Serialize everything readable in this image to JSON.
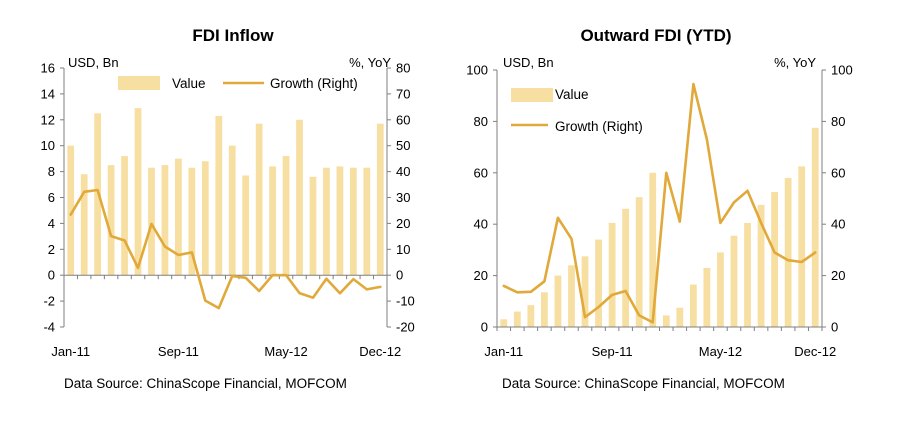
{
  "colors": {
    "bar": "#f7dea1",
    "line": "#e0a93a",
    "axis": "#7f7f7f"
  },
  "chart_data": [
    {
      "type": "bar",
      "title": "FDI Inflow",
      "left_unit": "USD, Bn",
      "right_unit": "%, YoY",
      "source": "Data Source: ChinaScope Financial, MOFCOM",
      "ylim": [
        -4,
        16
      ],
      "ylim_right": [
        -20,
        80
      ],
      "y_ticks": [
        -4,
        -2,
        0,
        2,
        4,
        6,
        8,
        10,
        12,
        14,
        16
      ],
      "y_ticks_right": [
        -20,
        -10,
        0,
        10,
        20,
        30,
        40,
        50,
        60,
        70,
        80
      ],
      "x_tick_labels": [
        {
          "index": 0,
          "label": "Jan-11"
        },
        {
          "index": 8,
          "label": "Sep-11"
        },
        {
          "index": 16,
          "label": "May-12"
        },
        {
          "index": 23,
          "label": "Dec-12"
        }
      ],
      "series": [
        {
          "name": "Value",
          "kind": "bar",
          "axis": "left",
          "values": [
            10.0,
            7.8,
            12.5,
            8.5,
            9.2,
            12.9,
            8.3,
            8.5,
            9.0,
            8.3,
            8.8,
            12.3,
            10.0,
            7.7,
            11.7,
            8.4,
            9.2,
            12.0,
            7.6,
            8.3,
            8.4,
            8.3,
            8.3,
            11.7
          ]
        },
        {
          "name": "Growth (Right)",
          "kind": "line",
          "axis": "right",
          "values": [
            23.4,
            32.2,
            32.9,
            15.1,
            13.4,
            2.8,
            19.8,
            11.1,
            7.8,
            8.8,
            -9.8,
            -12.7,
            -0.3,
            -1.0,
            -6.1,
            0.0,
            0.0,
            -6.9,
            -8.7,
            -1.4,
            -7.0,
            -1.5,
            -5.5,
            -4.5
          ]
        }
      ],
      "legend": "top"
    },
    {
      "type": "bar",
      "title": "Outward FDI (YTD)",
      "left_unit": "USD, Bn",
      "right_unit": "%, YoY",
      "source": "Data Source: ChinaScope Financial, MOFCOM",
      "ylim": [
        0,
        100
      ],
      "ylim_right": [
        0,
        100
      ],
      "y_ticks": [
        0,
        20,
        40,
        60,
        80,
        100
      ],
      "y_ticks_right": [
        0,
        20,
        40,
        60,
        80,
        100
      ],
      "x_tick_labels": [
        {
          "index": 0,
          "label": "Jan-11"
        },
        {
          "index": 8,
          "label": "Sep-11"
        },
        {
          "index": 16,
          "label": "May-12"
        },
        {
          "index": 23,
          "label": "Dec-12"
        }
      ],
      "series": [
        {
          "name": "Value",
          "kind": "bar",
          "axis": "left",
          "values": [
            3.0,
            6.0,
            8.5,
            13.5,
            20.0,
            24.0,
            27.5,
            34.0,
            40.5,
            46.0,
            50.5,
            60.0,
            4.5,
            7.5,
            16.5,
            23.0,
            29.0,
            35.5,
            40.5,
            47.5,
            52.5,
            58.0,
            62.5,
            77.5
          ]
        },
        {
          "name": "Growth (Right)",
          "kind": "line",
          "axis": "right",
          "values": [
            16.0,
            13.5,
            13.7,
            17.8,
            42.5,
            34.3,
            3.8,
            7.8,
            12.5,
            14.0,
            4.5,
            1.8,
            60.0,
            41.0,
            94.5,
            73.0,
            40.5,
            48.5,
            53.0,
            40.5,
            29.0,
            26.0,
            25.3,
            29.0
          ]
        }
      ],
      "legend": "top-left"
    }
  ]
}
